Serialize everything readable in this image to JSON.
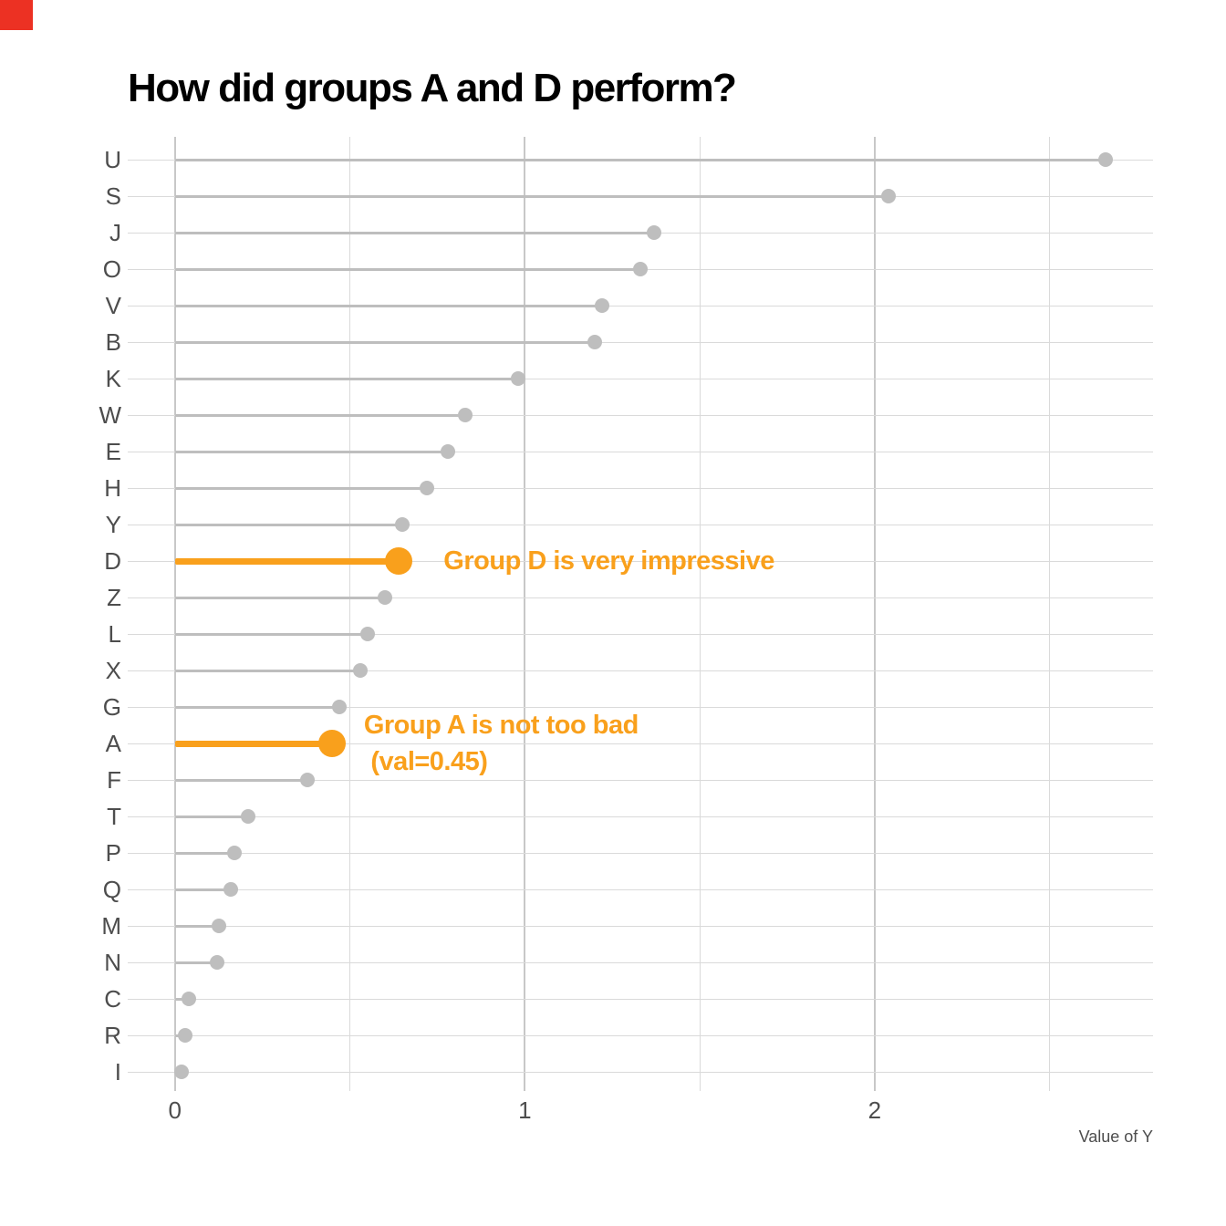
{
  "chart_data": {
    "type": "bar",
    "style": "lollipop-horizontal",
    "title": "How did groups A and D perform?",
    "xlabel": "Value of Y",
    "ylabel": "",
    "categories": [
      "U",
      "S",
      "J",
      "O",
      "V",
      "B",
      "K",
      "W",
      "E",
      "H",
      "Y",
      "D",
      "Z",
      "L",
      "X",
      "G",
      "A",
      "F",
      "T",
      "P",
      "Q",
      "M",
      "N",
      "C",
      "R",
      "I"
    ],
    "values": [
      2.66,
      2.04,
      1.37,
      1.33,
      1.22,
      1.2,
      0.98,
      0.83,
      0.78,
      0.72,
      0.65,
      0.64,
      0.6,
      0.55,
      0.53,
      0.47,
      0.45,
      0.38,
      0.21,
      0.17,
      0.16,
      0.125,
      0.12,
      0.04,
      0.03,
      0.02
    ],
    "highlighted_categories": [
      "D",
      "A"
    ],
    "colors": {
      "highlight": "#f9a01c",
      "default": "#bebebe"
    },
    "x_ticks": [
      0,
      1,
      2
    ],
    "x_tick_labels": [
      "0",
      "1",
      "2"
    ],
    "x_minor_gridlines": [
      0.5,
      1.5,
      2.5
    ],
    "xlim": [
      -0.14,
      2.8
    ],
    "grid": true,
    "legend": "none",
    "annotations": [
      {
        "category": "D",
        "x": 0.768,
        "lines": [
          "Group D is very impressive"
        ]
      },
      {
        "category": "A",
        "x": 0.54,
        "lines": [
          "Group A is not too bad",
          " (val=0.45)"
        ]
      }
    ]
  }
}
